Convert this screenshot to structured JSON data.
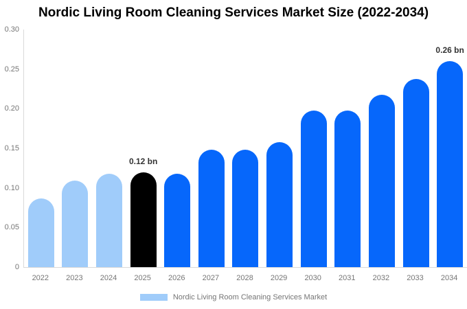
{
  "title": "Nordic Living Room Cleaning Services Market Size (2022-2034)",
  "legend": {
    "label": "Nordic Living Room Cleaning Services Market"
  },
  "y_axis": {
    "tick_labels": [
      "0.30",
      "0.25",
      "0.20",
      "0.15",
      "0.10",
      "0.05",
      "0"
    ]
  },
  "colors": {
    "bar_light_blue": "#a0ccfa",
    "bar_blue": "#0667fb",
    "bar_black": "#000000",
    "axis_text": "#757575",
    "axis_line": "#d9d9d9",
    "annotation_text": "#333333",
    "title_text": "#000000",
    "background": "#ffffff"
  },
  "chart_data": {
    "type": "bar",
    "title": "Nordic Living Room Cleaning Services Market Size (2022-2034)",
    "series_name": "Nordic Living Room Cleaning Services Market",
    "unit": "bn",
    "categories": [
      "2022",
      "2023",
      "2024",
      "2025",
      "2026",
      "2027",
      "2028",
      "2029",
      "2030",
      "2031",
      "2032",
      "2033",
      "2034"
    ],
    "values": [
      0.087,
      0.109,
      0.118,
      0.12,
      0.118,
      0.148,
      0.148,
      0.158,
      0.198,
      0.198,
      0.218,
      0.238,
      0.26
    ],
    "bar_color_keys": [
      "bar_light_blue",
      "bar_light_blue",
      "bar_light_blue",
      "bar_black",
      "bar_blue",
      "bar_blue",
      "bar_blue",
      "bar_blue",
      "bar_blue",
      "bar_blue",
      "bar_blue",
      "bar_blue",
      "bar_blue"
    ],
    "annotations": [
      {
        "index": 3,
        "text": "0.12 bn"
      },
      {
        "index": 12,
        "text": "0.26 bn"
      }
    ],
    "ylim": [
      0,
      0.3
    ],
    "grid": false,
    "legend_position": "bottom"
  }
}
